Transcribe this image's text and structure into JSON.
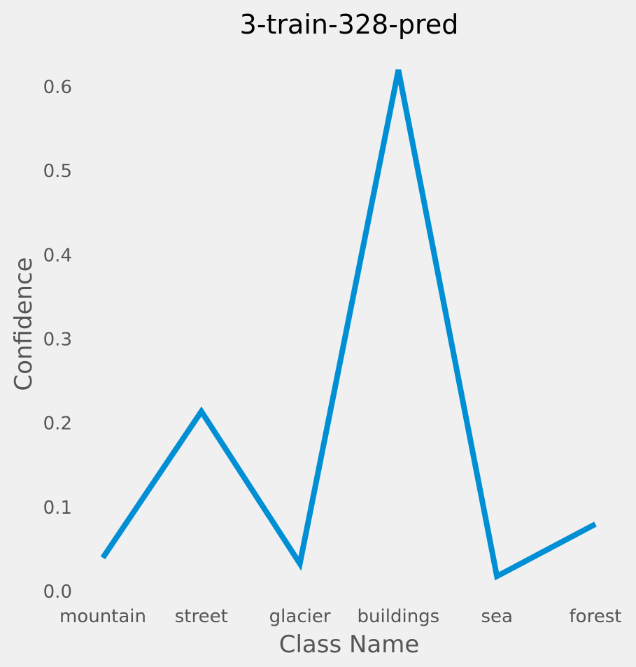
{
  "colors": {
    "background": "#f0f0f0",
    "line": "#008fd5",
    "title": "#000000",
    "axis_text": "#555555"
  },
  "chart_data": {
    "type": "line",
    "title": "3-train-328-pred",
    "xlabel": "Class Name",
    "ylabel": "Confidence",
    "categories": [
      "mountain",
      "street",
      "glacier",
      "buildings",
      "sea",
      "forest"
    ],
    "values": [
      0.04,
      0.214,
      0.033,
      0.62,
      0.018,
      0.08
    ],
    "ylim": [
      0.0,
      0.62
    ],
    "yticks": [
      "0.0",
      "0.1",
      "0.2",
      "0.3",
      "0.4",
      "0.5",
      "0.6"
    ],
    "grid": false,
    "legend": "none"
  }
}
